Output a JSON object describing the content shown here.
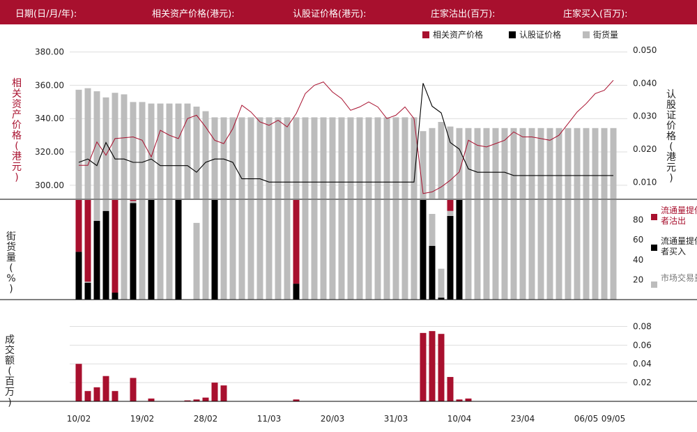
{
  "header": {
    "date_label": "日期(日/月/年):",
    "underlying_label": "相关资产价格(港元):",
    "warrant_label": "认股证价格(港元):",
    "mm_sell_label": "庄家沽出(百万):",
    "mm_buy_label": "庄家买入(百万):"
  },
  "legend_top": [
    "相关资产价格",
    "认股证价格",
    "街货量"
  ],
  "legend_mid": [
    "流通量提供者沽出",
    "流通量提供者买入",
    "市场交易量"
  ],
  "axis_titles": {
    "left_top": "相关资产价格(港元)",
    "right_top": "认股证价格(港元)",
    "left_mid": "街货量(%)",
    "left_bottom": "成交额(百万)"
  },
  "colors": {
    "underlying": "#a8102e",
    "warrant": "#000000",
    "outstanding": "#bcbcbc",
    "sell": "#a8102e",
    "buy": "#000000",
    "market": "#bcbcbc"
  },
  "chart_data": {
    "type": "line",
    "x_tick_labels": [
      "10/02",
      "19/02",
      "28/02",
      "11/03",
      "20/03",
      "31/03",
      "10/04",
      "23/04",
      "06/05",
      "09/05"
    ],
    "x_tick_index": [
      0,
      7,
      14,
      21,
      28,
      35,
      42,
      49,
      56,
      59
    ],
    "top": {
      "left_ticks": [
        "380.00",
        "360.00",
        "340.00",
        "320.00",
        "300.00"
      ],
      "left_ylim": [
        292,
        384
      ],
      "right_ticks": [
        "0.050",
        "0.040",
        "0.030",
        "0.020",
        "0.010"
      ],
      "right_ylim": [
        0.005,
        0.0515
      ],
      "underlying_price": [
        312,
        312,
        326,
        318,
        328,
        328.5,
        329,
        327,
        317,
        333,
        330,
        328,
        340,
        342,
        335,
        327,
        325,
        334,
        348,
        344,
        338,
        336,
        339,
        335,
        343,
        355,
        360,
        362,
        356,
        352,
        345,
        347,
        350,
        347,
        340,
        342,
        347,
        340,
        295,
        296,
        299,
        303,
        308,
        327,
        324,
        323,
        325,
        327,
        332,
        329,
        329,
        328,
        327,
        330,
        337,
        344,
        349,
        355,
        357,
        363
      ],
      "warrant_price": [
        0.016,
        0.017,
        0.015,
        0.022,
        0.017,
        0.017,
        0.016,
        0.016,
        0.017,
        0.015,
        0.015,
        0.015,
        0.015,
        0.013,
        0.016,
        0.017,
        0.017,
        0.016,
        0.011,
        0.011,
        0.011,
        0.01,
        0.01,
        0.01,
        0.01,
        0.01,
        0.01,
        0.01,
        0.01,
        0.01,
        0.01,
        0.01,
        0.01,
        0.01,
        0.01,
        0.01,
        0.01,
        0.01,
        0.04,
        0.033,
        0.031,
        0.022,
        0.02,
        0.014,
        0.013,
        0.013,
        0.013,
        0.013,
        0.012,
        0.012,
        0.012,
        0.012,
        0.012,
        0.012,
        0.012,
        0.012,
        0.012,
        0.012,
        0.012,
        0.012
      ],
      "outstanding_pct": [
        71,
        72,
        70,
        66,
        69,
        68,
        63,
        63,
        62,
        62,
        62,
        62,
        62,
        60,
        57,
        53,
        53,
        53,
        53,
        53,
        53,
        53,
        53,
        53,
        53,
        53,
        53,
        53,
        53,
        53,
        53,
        53,
        53,
        53,
        53,
        53,
        53,
        53,
        44,
        46,
        50,
        47,
        46,
        46,
        46,
        46,
        46,
        46,
        46,
        46,
        46,
        46,
        46,
        46,
        46,
        46,
        46,
        46,
        46,
        46
      ]
    },
    "middle": {
      "y_ticks": [
        "80",
        "60",
        "40",
        "20"
      ],
      "ylim": [
        0,
        100
      ],
      "lp_sell_pct": [
        52,
        82,
        0,
        0,
        93,
        0,
        1,
        0,
        0,
        0,
        0,
        0,
        0,
        0,
        0,
        0,
        0,
        0,
        0,
        0,
        0,
        0,
        0,
        0,
        84,
        0,
        0,
        0,
        0,
        0,
        0,
        0,
        0,
        0,
        0,
        0,
        0,
        0,
        0,
        0,
        0,
        11,
        0,
        0,
        0,
        0,
        0,
        0,
        0,
        0,
        0,
        0,
        0,
        0,
        0,
        0,
        0,
        0,
        0,
        0
      ],
      "lp_buy_pct": [
        48,
        17,
        79,
        89,
        7,
        0,
        97,
        0,
        100,
        0,
        0,
        100,
        0,
        0,
        0,
        100,
        0,
        0,
        0,
        0,
        0,
        0,
        0,
        0,
        16,
        0,
        0,
        0,
        0,
        0,
        0,
        0,
        0,
        0,
        0,
        0,
        0,
        0,
        100,
        54,
        2,
        84,
        100,
        0,
        0,
        0,
        0,
        0,
        0,
        0,
        0,
        0,
        0,
        0,
        0,
        0,
        0,
        0,
        0,
        0
      ],
      "market_pct": [
        0,
        1,
        21,
        11,
        0,
        100,
        2,
        100,
        0,
        100,
        100,
        0,
        0,
        77,
        100,
        0,
        100,
        100,
        100,
        100,
        100,
        100,
        100,
        100,
        0,
        100,
        100,
        100,
        100,
        100,
        100,
        100,
        100,
        100,
        100,
        100,
        100,
        100,
        0,
        32,
        29,
        5,
        0,
        100,
        100,
        100,
        100,
        100,
        100,
        100,
        100,
        100,
        100,
        100,
        100,
        100,
        100,
        100,
        100,
        100
      ]
    },
    "bottom": {
      "y_ticks": [
        "0.08",
        "0.06",
        "0.04",
        "0.02"
      ],
      "ylim": [
        0,
        0.09
      ],
      "turnover": [
        0.04,
        0.011,
        0.015,
        0.027,
        0.011,
        0,
        0.025,
        0,
        0.003,
        0,
        0,
        0,
        0.001,
        0.002,
        0.004,
        0.02,
        0.017,
        0,
        0,
        0,
        0,
        0,
        0,
        0,
        0.002,
        0,
        0,
        0,
        0,
        0,
        0,
        0,
        0,
        0,
        0,
        0,
        0,
        0,
        0.073,
        0.075,
        0.072,
        0.026,
        0.002,
        0.003,
        0,
        0,
        0,
        0,
        0,
        0,
        0,
        0,
        0,
        0,
        0,
        0,
        0,
        0,
        0,
        0
      ]
    }
  }
}
